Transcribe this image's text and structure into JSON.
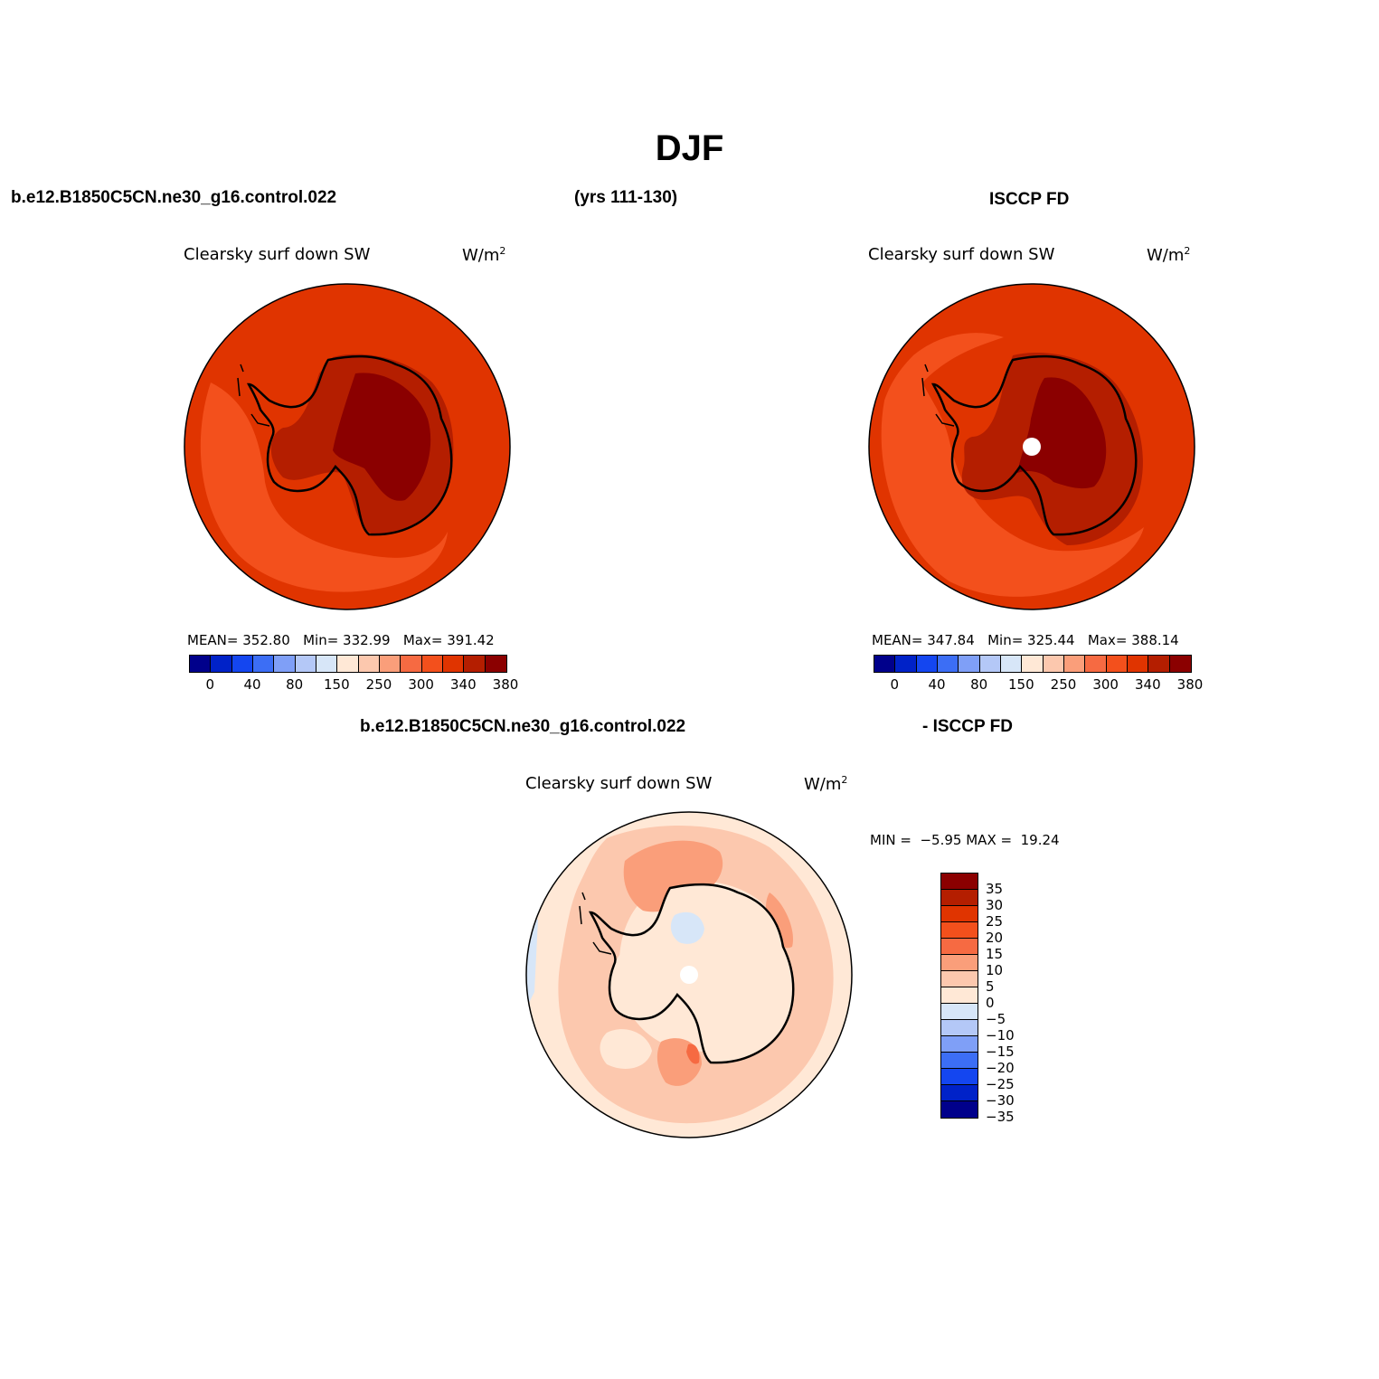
{
  "figure": {
    "title": "DJF",
    "case_name": "b.e12.B1850C5CN.ne30_g16.control.022",
    "years": "(yrs 111-130)",
    "obs_name": "ISCCP FD",
    "diff_case_name": "b.e12.B1850C5CN.ne30_g16.control.022",
    "diff_obs_name": "- ISCCP FD"
  },
  "panels": {
    "model": {
      "variable": "Clearsky surf down SW",
      "units_base": "W/m",
      "units_exp": "2",
      "mean_label": "MEAN=",
      "mean": "352.80",
      "min_label": "Min=",
      "min": "332.99",
      "max_label": "Max=",
      "max": "391.42"
    },
    "obs": {
      "variable": "Clearsky surf down SW",
      "units_base": "W/m",
      "units_exp": "2",
      "mean_label": "MEAN=",
      "mean": "347.84",
      "min_label": "Min=",
      "min": "325.44",
      "max_label": "Max=",
      "max": "388.14"
    },
    "diff": {
      "variable": "Clearsky surf down SW",
      "units_base": "W/m",
      "units_exp": "2",
      "min_label": "MIN =",
      "min": "−5.95",
      "max_label": "MAX =",
      "max": "19.24"
    }
  },
  "colorbar_main": {
    "colors": [
      "#00008b",
      "#0022c8",
      "#1446f0",
      "#3c6ef5",
      "#7f9ff7",
      "#b4c8f7",
      "#d7e6f8",
      "#ffe8d6",
      "#fcc8ae",
      "#fa9e7a",
      "#f66a42",
      "#f3501c",
      "#e03400",
      "#b41e00",
      "#8b0000"
    ],
    "tick_labels": [
      "0",
      "40",
      "80",
      "150",
      "250",
      "300",
      "340",
      "380"
    ]
  },
  "colorbar_diff": {
    "colors": [
      "#8b0000",
      "#b41e00",
      "#e03400",
      "#f3501c",
      "#f66a42",
      "#fa9e7a",
      "#fcc8ae",
      "#ffe8d6",
      "#d7e6f8",
      "#b4c8f7",
      "#7f9ff7",
      "#3c6ef5",
      "#1446f0",
      "#0022c8",
      "#00008b"
    ],
    "tick_labels": [
      "35",
      "30",
      "25",
      "20",
      "15",
      "10",
      "5",
      "0",
      "−5",
      "−10",
      "−15",
      "−20",
      "−25",
      "−30",
      "−35"
    ]
  },
  "map_colors": {
    "ocean_model": "#e03400",
    "ocean_low": "#f3501c",
    "ice_edge": "#b41e00",
    "ice_center": "#8b0000",
    "diff_light": "#ffe8d6",
    "diff_medium": "#fcc8ae",
    "diff_strong": "#fa9e7a",
    "diff_hot": "#f66a42",
    "diff_neg": "#d7e6f8",
    "missing": "#ffffff"
  }
}
